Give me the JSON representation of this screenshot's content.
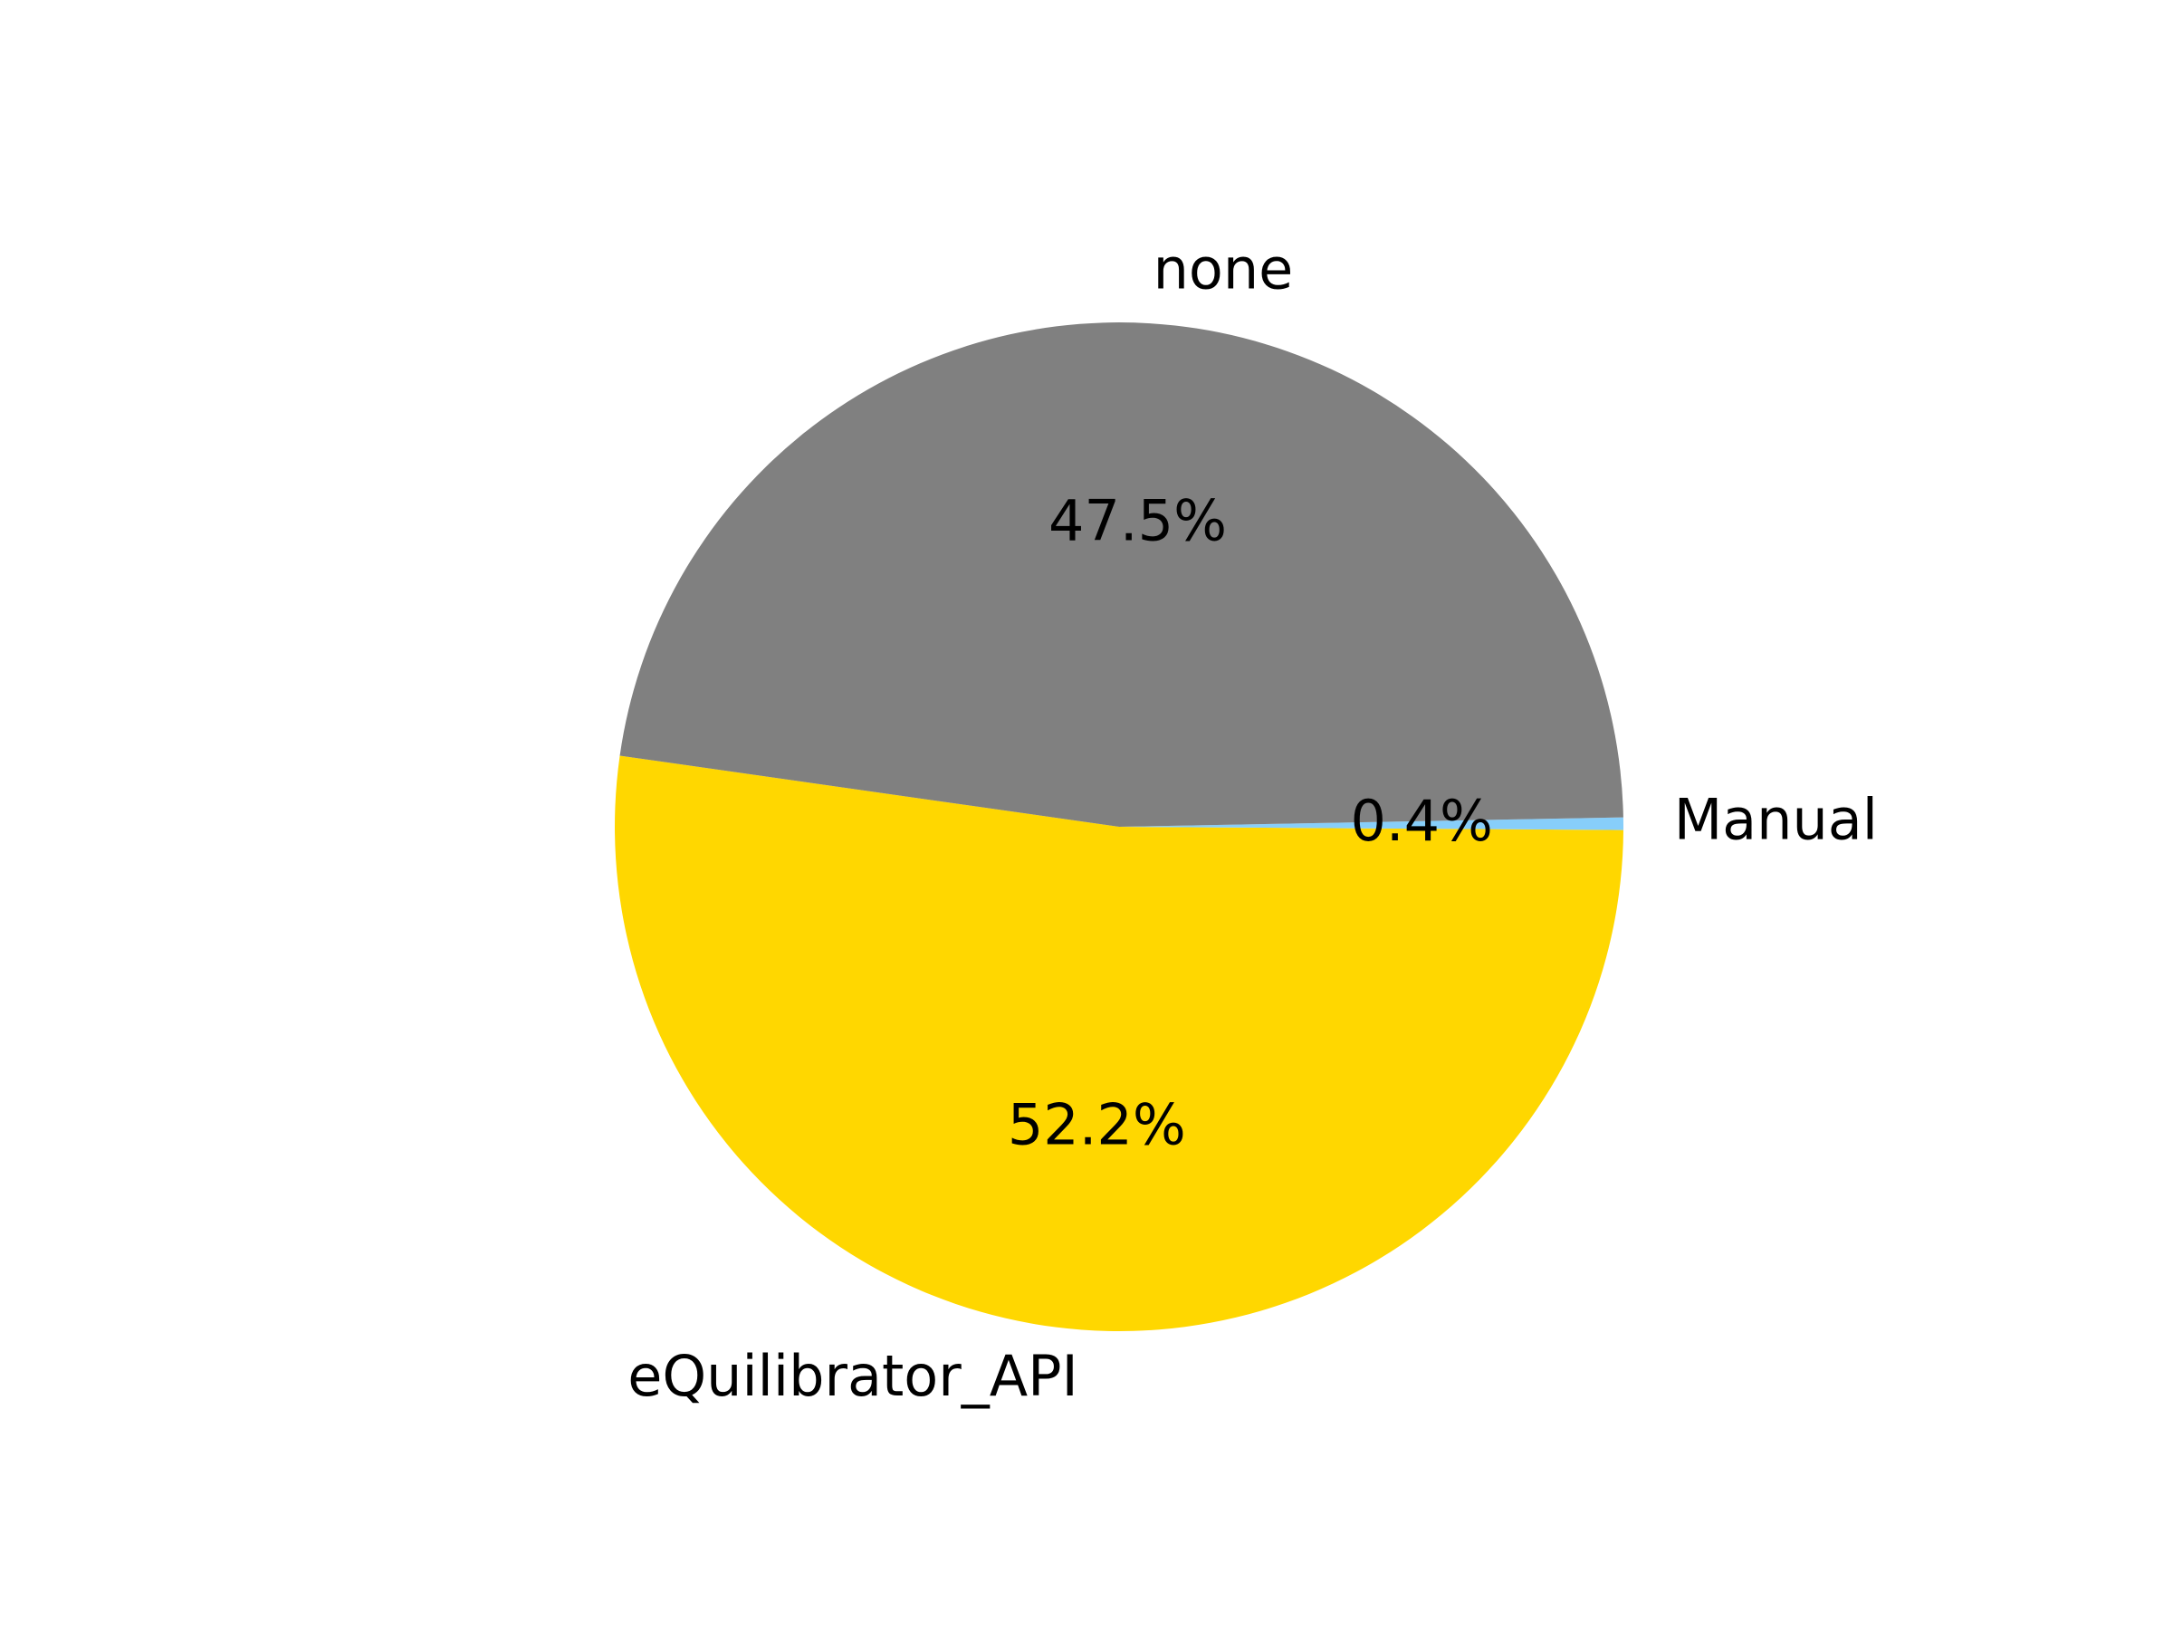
{
  "chart_data": {
    "type": "pie",
    "slices": [
      {
        "label": "eQuilibrator_API",
        "value": 52.2,
        "pct_label": "52.2%",
        "color": "#FFD700"
      },
      {
        "label": "Manual",
        "value": 0.4,
        "pct_label": "0.4%",
        "color": "#87CEFA"
      },
      {
        "label": "none",
        "value": 47.5,
        "pct_label": "47.5%",
        "color": "#808080"
      }
    ],
    "start_angle_deg": 171.9,
    "direction": "counterclockwise",
    "title": "",
    "legend": false
  }
}
